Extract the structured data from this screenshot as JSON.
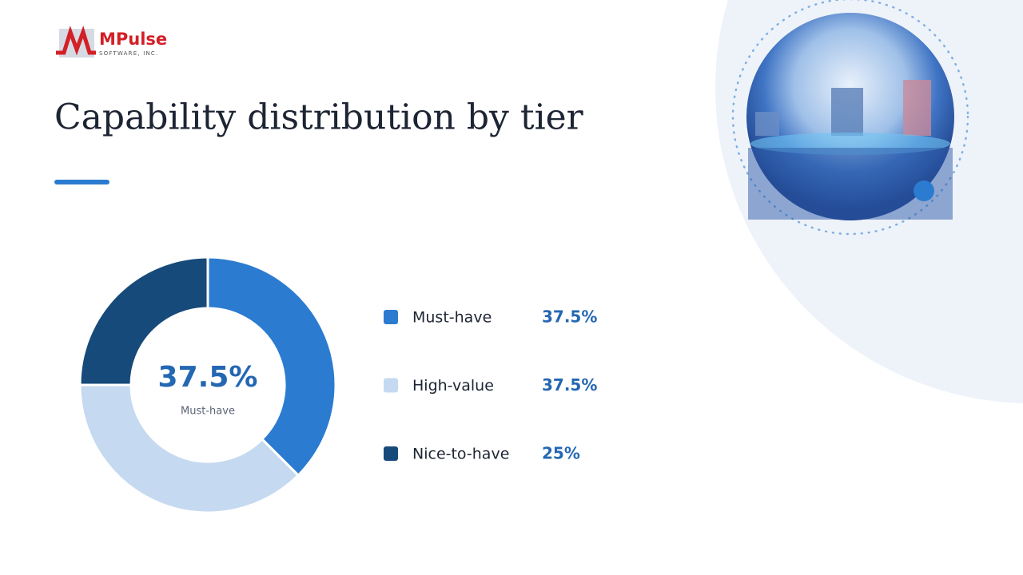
{
  "logo": {
    "name": "MPulse",
    "tagline": "SOFTWARE, INC."
  },
  "chart_data": {
    "type": "pie",
    "title": "Capability distribution by tier",
    "categories": [
      "Must-have",
      "High-value",
      "Nice-to-have"
    ],
    "values": [
      37.5,
      37.5,
      25
    ],
    "value_labels": [
      "37.5%",
      "37.5%",
      "25%"
    ],
    "colors": [
      "#2b7bd0",
      "#c5daf0",
      "#164a7a"
    ],
    "hole": true
  }
}
